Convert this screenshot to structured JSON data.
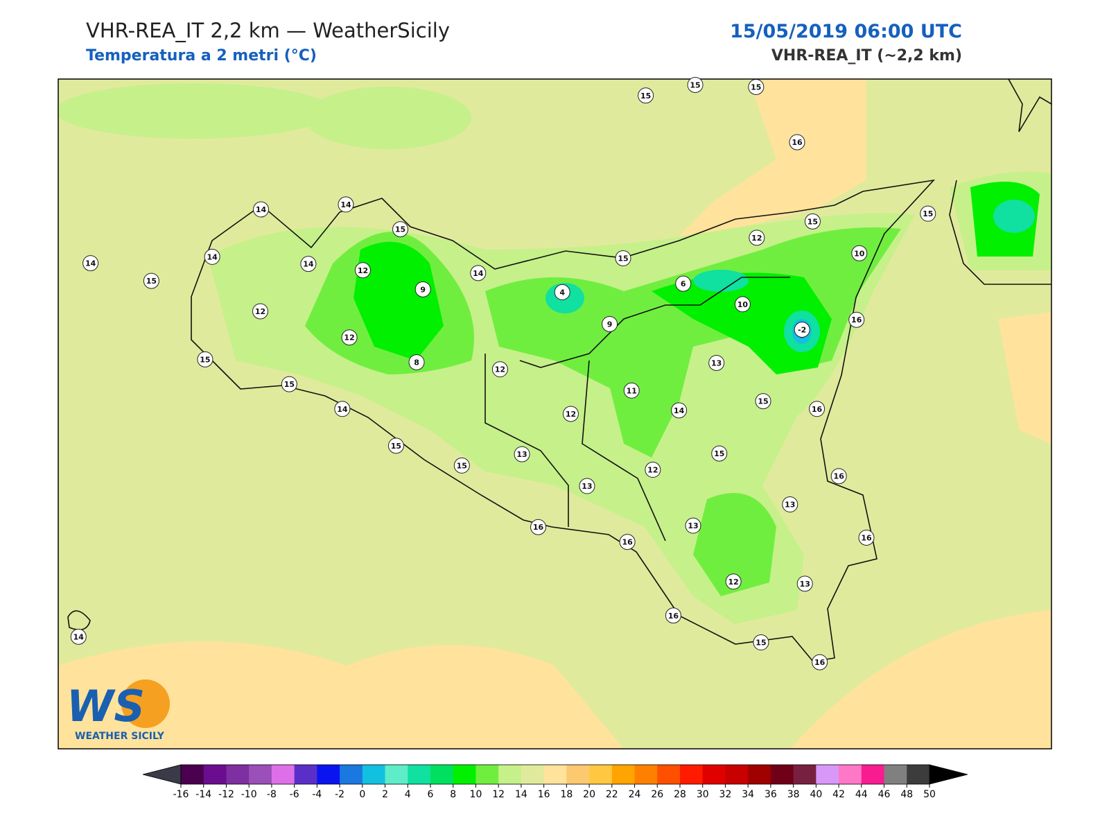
{
  "header": {
    "title": "VHR-REA_IT 2,2 km — WeatherSicily",
    "subtitle": "Temperatura a 2 metri (°C)",
    "datetime": "15/05/2019 06:00 UTC",
    "model": "VHR-REA_IT (~2,2 km)"
  },
  "stations": [
    15,
    15,
    15,
    16,
    14,
    14,
    15,
    15,
    15,
    12,
    10,
    14,
    14,
    15,
    14,
    12,
    14,
    15,
    6,
    9,
    4,
    10,
    12,
    9,
    16,
    -2,
    12,
    15,
    8,
    13,
    12,
    15,
    11,
    15,
    14,
    14,
    16,
    12,
    15,
    15,
    13,
    15,
    12,
    16,
    13,
    13,
    13,
    16,
    16,
    16,
    12,
    13,
    16,
    15,
    16,
    14
  ],
  "colorbar": {
    "ticks": [
      -16,
      -14,
      -12,
      -10,
      -8,
      -6,
      -4,
      -2,
      0,
      2,
      4,
      6,
      8,
      10,
      12,
      14,
      16,
      18,
      20,
      22,
      24,
      26,
      28,
      30,
      32,
      34,
      36,
      38,
      40,
      42,
      44,
      46,
      48,
      50
    ],
    "under_color": "#3a3a48",
    "over_color": "#000000",
    "colors": [
      "#4b0050",
      "#6a0d8f",
      "#7e2fa0",
      "#9b4fb8",
      "#dd70e8",
      "#5a2fc8",
      "#0a14f0",
      "#1a78e0",
      "#12c0e0",
      "#5eedc8",
      "#10e0a0",
      "#00e060",
      "#00f000",
      "#70ee40",
      "#c6f08a",
      "#e0ea9c",
      "#ffe29c",
      "#fcc870",
      "#ffc840",
      "#ffa400",
      "#ff8000",
      "#ff5000",
      "#ff1a00",
      "#e00000",
      "#c80000",
      "#a00000",
      "#700018",
      "#782040",
      "#d898f8",
      "#ff78c8",
      "#f81c90",
      "#808080",
      "#3c3c3c"
    ]
  },
  "logo": {
    "initials": "WS",
    "name": "WEATHER SICILY"
  }
}
